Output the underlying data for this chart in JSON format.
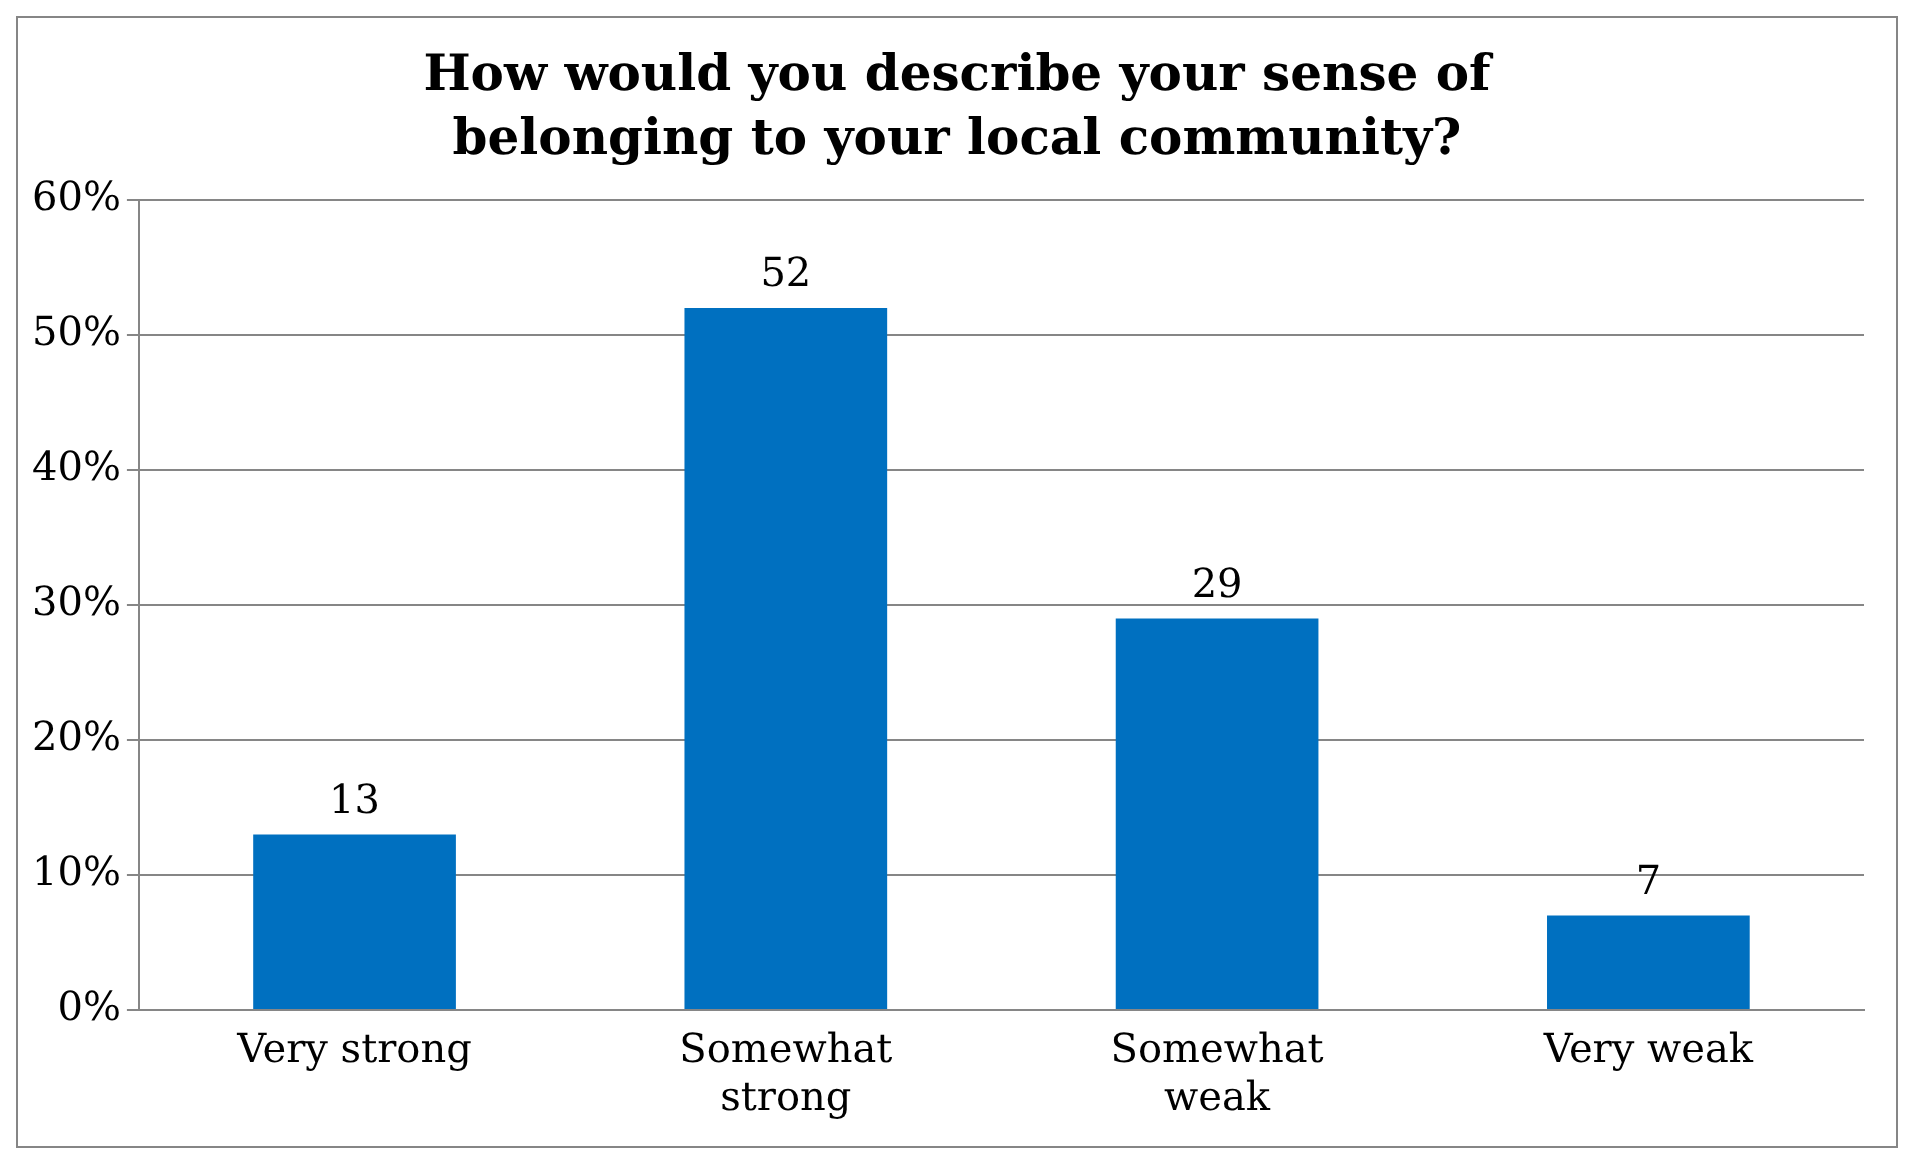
{
  "chart_data": {
    "type": "bar",
    "title": "How would you describe your sense of belonging to your local community?",
    "categories": [
      "Very strong",
      "Somewhat strong",
      "Somewhat weak",
      "Very weak"
    ],
    "values": [
      13,
      52,
      29,
      7
    ],
    "color": "#0070c0",
    "ylim": [
      0,
      60
    ],
    "yticks": [
      {
        "value": 0,
        "label": "0%"
      },
      {
        "value": 10,
        "label": "10%"
      },
      {
        "value": 20,
        "label": "20%"
      },
      {
        "value": 30,
        "label": "30%"
      },
      {
        "value": 40,
        "label": "40%"
      },
      {
        "value": 50,
        "label": "50%"
      },
      {
        "value": 60,
        "label": "60%"
      }
    ],
    "grid": "y",
    "data_labels": true,
    "legend": false
  }
}
